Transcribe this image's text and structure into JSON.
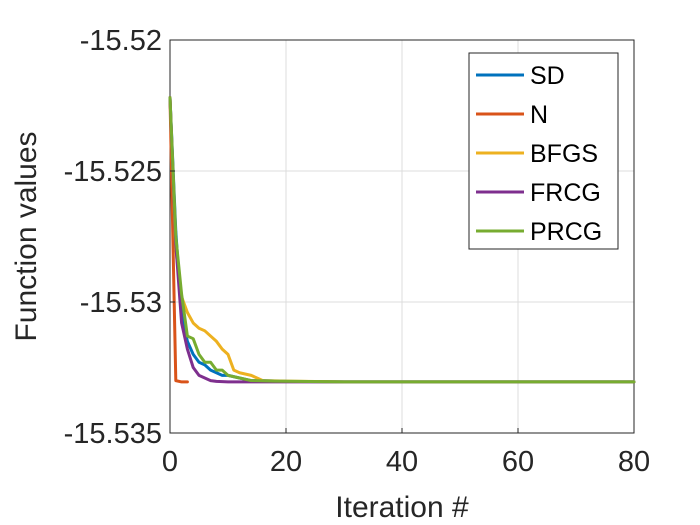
{
  "chart_data": {
    "type": "line",
    "xlabel": "Iteration #",
    "ylabel": "Function values",
    "xlim": [
      0,
      80
    ],
    "ylim": [
      -15.535,
      -15.52
    ],
    "xticks": [
      0,
      20,
      40,
      60,
      80
    ],
    "yticks": [
      -15.535,
      -15.53,
      -15.525,
      -15.52
    ],
    "xtick_labels": [
      "0",
      "20",
      "40",
      "60",
      "80"
    ],
    "ytick_labels": [
      "-15.535",
      "-15.53",
      "-15.525",
      "-15.52"
    ],
    "grid": true,
    "legend_position": "top-right",
    "series": [
      {
        "name": "SD",
        "color": "#0072BD",
        "points": [
          [
            0,
            -15.5222
          ],
          [
            1,
            -15.5273
          ],
          [
            2,
            -15.5305
          ],
          [
            3,
            -15.5315
          ],
          [
            4,
            -15.532
          ],
          [
            5,
            -15.5323
          ],
          [
            6,
            -15.5324
          ],
          [
            7,
            -15.5326
          ],
          [
            8,
            -15.5327
          ],
          [
            9,
            -15.5328
          ],
          [
            10,
            -15.5328
          ],
          [
            12,
            -15.5329
          ],
          [
            14,
            -15.533
          ],
          [
            16,
            -15.533
          ],
          [
            20,
            -15.53303
          ],
          [
            30,
            -15.53305
          ],
          [
            40,
            -15.53305
          ],
          [
            60,
            -15.53305
          ],
          [
            80,
            -15.53305
          ]
        ]
      },
      {
        "name": "N",
        "color": "#D95319",
        "points": [
          [
            0,
            -15.5222
          ],
          [
            1,
            -15.533
          ],
          [
            2,
            -15.53305
          ],
          [
            3,
            -15.53305
          ]
        ]
      },
      {
        "name": "BFGS",
        "color": "#EDB120",
        "points": [
          [
            0,
            -15.5222
          ],
          [
            1,
            -15.528
          ],
          [
            2,
            -15.5298
          ],
          [
            3,
            -15.5304
          ],
          [
            4,
            -15.5308
          ],
          [
            5,
            -15.531
          ],
          [
            6,
            -15.5311
          ],
          [
            7,
            -15.5313
          ],
          [
            8,
            -15.5315
          ],
          [
            9,
            -15.5318
          ],
          [
            10,
            -15.532
          ],
          [
            11,
            -15.5326
          ],
          [
            12,
            -15.5327
          ],
          [
            14,
            -15.5328
          ],
          [
            16,
            -15.533
          ],
          [
            20,
            -15.53302
          ],
          [
            30,
            -15.53305
          ],
          [
            80,
            -15.53305
          ]
        ]
      },
      {
        "name": "FRCG",
        "color": "#7E2F8E",
        "points": [
          [
            0,
            -15.5222
          ],
          [
            1,
            -15.5278
          ],
          [
            2,
            -15.5308
          ],
          [
            3,
            -15.5318
          ],
          [
            4,
            -15.5325
          ],
          [
            5,
            -15.5328
          ],
          [
            6,
            -15.5329
          ],
          [
            7,
            -15.533
          ],
          [
            8,
            -15.53303
          ],
          [
            10,
            -15.53305
          ],
          [
            20,
            -15.53305
          ],
          [
            80,
            -15.53305
          ]
        ]
      },
      {
        "name": "PRCG",
        "color": "#77AC30",
        "points": [
          [
            0,
            -15.5222
          ],
          [
            1,
            -15.5275
          ],
          [
            2,
            -15.5297
          ],
          [
            3,
            -15.5313
          ],
          [
            4,
            -15.5314
          ],
          [
            5,
            -15.532
          ],
          [
            6,
            -15.5323
          ],
          [
            7,
            -15.5323
          ],
          [
            8,
            -15.5326
          ],
          [
            9,
            -15.5326
          ],
          [
            10,
            -15.5328
          ],
          [
            12,
            -15.5329
          ],
          [
            14,
            -15.533
          ],
          [
            18,
            -15.53302
          ],
          [
            30,
            -15.53305
          ],
          [
            80,
            -15.53305
          ]
        ]
      }
    ]
  }
}
